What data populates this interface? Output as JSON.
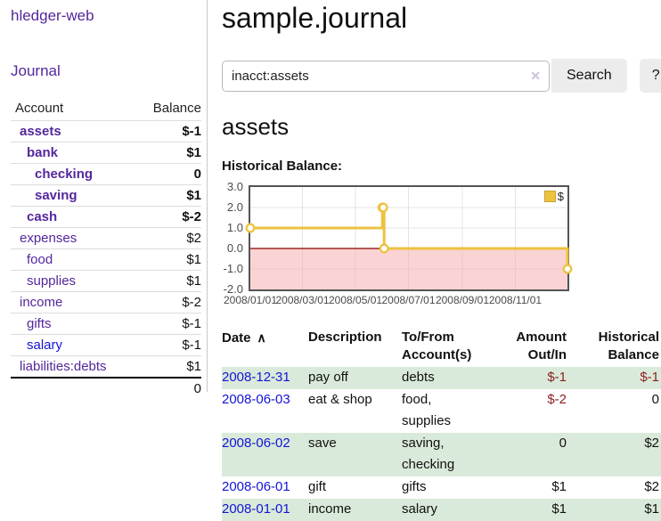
{
  "app": {
    "brand": "hledger-web",
    "nav": {
      "journal": "Journal"
    }
  },
  "sidebar": {
    "headers": [
      "Account",
      "Balance"
    ],
    "rows": [
      {
        "name": "assets",
        "balance": "$-1"
      },
      {
        "name": "bank",
        "balance": "$1"
      },
      {
        "name": "checking",
        "balance": "0"
      },
      {
        "name": "saving",
        "balance": "$1"
      },
      {
        "name": "cash",
        "balance": "$-2"
      },
      {
        "name": "expenses",
        "balance": "$2"
      },
      {
        "name": "food",
        "balance": "$1"
      },
      {
        "name": "supplies",
        "balance": "$1"
      },
      {
        "name": "income",
        "balance": "$-2"
      },
      {
        "name": "gifts",
        "balance": "$-1"
      },
      {
        "name": "salary",
        "balance": "$-1"
      },
      {
        "name": "liabilities:debts",
        "balance": "$1"
      }
    ],
    "total": "0"
  },
  "main": {
    "title": "sample.journal",
    "search": {
      "value": "inacct:assets",
      "clear_icon": "✕",
      "button_label": "Search",
      "help_label": "?"
    },
    "account_heading": "assets",
    "chart_title": "Historical Balance:"
  },
  "chart_data": {
    "type": "line",
    "step": true,
    "title": "Historical Balance",
    "xlim": [
      "2008-01-01",
      "2008-12-31"
    ],
    "ylim": [
      -2,
      3
    ],
    "x_ticks": [
      {
        "date": "2008-01-01",
        "label": "2008/01/01"
      },
      {
        "date": "2008-03-01",
        "label": "2008/03/01"
      },
      {
        "date": "2008-05-01",
        "label": "2008/05/01"
      },
      {
        "date": "2008-07-01",
        "label": "2008/07/01"
      },
      {
        "date": "2008-09-01",
        "label": "2008/09/01"
      },
      {
        "date": "2008-11-01",
        "label": "2008/11/01"
      }
    ],
    "y_ticks": [
      {
        "value": 3,
        "label": "3.0"
      },
      {
        "value": 2,
        "label": "2.0"
      },
      {
        "value": 1,
        "label": "1.0"
      },
      {
        "value": 0,
        "label": "0.0"
      },
      {
        "value": -1,
        "label": "-1.0"
      },
      {
        "value": -2,
        "label": "-2.0"
      }
    ],
    "series": [
      {
        "name": "$",
        "color": "#edc240",
        "points": [
          [
            "2008-01-01",
            1
          ],
          [
            "2008-06-01",
            2
          ],
          [
            "2008-06-02",
            2
          ],
          [
            "2008-06-03",
            0
          ],
          [
            "2008-12-31",
            -1
          ]
        ]
      }
    ],
    "legend": {
      "label": "$",
      "position": "top-right",
      "swatch_color": "#edc240"
    },
    "negative_region_color": "#f5aaaa",
    "zero_line_color": "#8b0000",
    "grid_color": "#e4e4e4"
  },
  "register": {
    "sort_icon": "∧",
    "columns": [
      {
        "line1": "Date",
        "line2": ""
      },
      {
        "line1": "Description",
        "line2": ""
      },
      {
        "line1": "To/From",
        "line2": "Account(s)"
      },
      {
        "line1": "Amount",
        "line2": "Out/In"
      },
      {
        "line1": "Historical",
        "line2": "Balance"
      }
    ],
    "rows": [
      {
        "date": "2008-12-31",
        "description": "pay off",
        "accounts": "debts",
        "amount": "$-1",
        "balance": "$-1"
      },
      {
        "date": "2008-06-03",
        "description": "eat & shop",
        "accounts": "food, supplies",
        "amount": "$-2",
        "balance": "0"
      },
      {
        "date": "2008-06-02",
        "description": "save",
        "accounts": "saving, checking",
        "amount": "0",
        "balance": "$2"
      },
      {
        "date": "2008-06-01",
        "description": "gift",
        "accounts": "gifts",
        "amount": "$1",
        "balance": "$2"
      },
      {
        "date": "2008-01-01",
        "description": "income",
        "accounts": "salary",
        "amount": "$1",
        "balance": "$1"
      }
    ]
  }
}
